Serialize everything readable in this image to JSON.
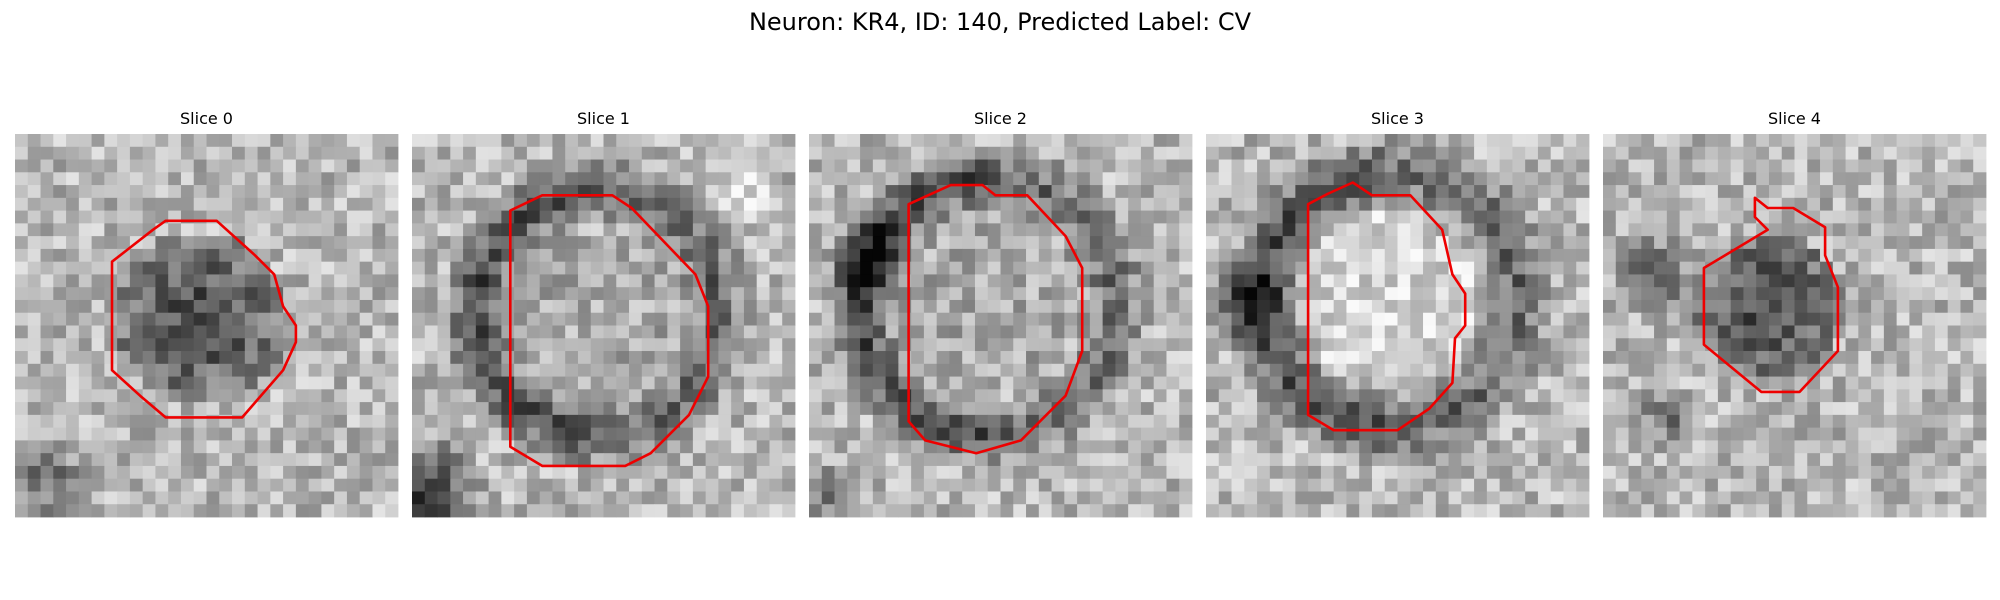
{
  "title": "Neuron: KR4, ID: 140, Predicted Label: CV",
  "panels": [
    {
      "title": "Slice 0"
    },
    {
      "title": "Slice 1"
    },
    {
      "title": "Slice 2"
    },
    {
      "title": "Slice 3"
    },
    {
      "title": "Slice 4"
    }
  ]
}
